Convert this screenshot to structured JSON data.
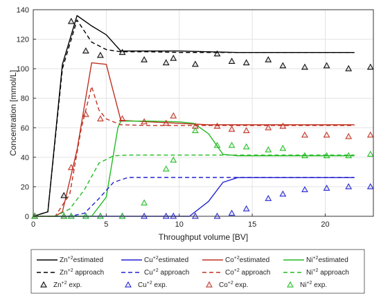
{
  "chart_data": {
    "type": "line",
    "xlabel": "Throughput volume [BV]",
    "ylabel": "Concentration [mmol/L]",
    "xlim": [
      0,
      23.3
    ],
    "ylim": [
      0,
      140
    ],
    "xticks": [
      0,
      5,
      10,
      15,
      20
    ],
    "yticks": [
      0,
      20,
      40,
      60,
      80,
      100,
      120,
      140
    ],
    "grid": true,
    "legend_placement": "bottom",
    "series": [
      {
        "ion": "Zn",
        "charge": "+2",
        "suffix": "estimated",
        "kind": "estimated",
        "color": "#000000",
        "x": [
          0,
          1,
          2,
          3,
          4,
          5,
          6,
          8,
          10,
          12,
          14,
          16,
          18,
          20,
          22
        ],
        "y": [
          0,
          3,
          103,
          136,
          129,
          123,
          112,
          112,
          112,
          111.5,
          111,
          111,
          111,
          111,
          111
        ]
      },
      {
        "ion": "Cu",
        "charge": "+2",
        "suffix": "estimated",
        "kind": "estimated",
        "color": "#2020d0",
        "x": [
          0,
          10.7,
          12.0,
          13.0,
          14,
          16,
          18,
          20,
          22
        ],
        "y": [
          0,
          0,
          10,
          23,
          26.2,
          26.2,
          26.2,
          26.2,
          26.2
        ]
      },
      {
        "ion": "Co",
        "charge": "+2",
        "suffix": "estimated",
        "kind": "estimated",
        "color": "#c03020",
        "x": [
          0,
          1.5,
          2.0,
          3.0,
          4.0,
          5.0,
          6.0,
          8,
          10,
          12,
          14,
          16,
          18,
          20,
          22
        ],
        "y": [
          0,
          0,
          3,
          45,
          104,
          103,
          65,
          64,
          63,
          62,
          62,
          62,
          62,
          62,
          62
        ]
      },
      {
        "ion": "Ni",
        "charge": "+2",
        "suffix": "estimated",
        "kind": "estimated",
        "color": "#22bb22",
        "x": [
          0,
          4.0,
          5.0,
          5.8,
          6.0,
          8,
          10,
          11,
          12,
          13,
          14,
          16,
          18,
          20,
          22
        ],
        "y": [
          0,
          0,
          13,
          60,
          64.5,
          64.5,
          64,
          63,
          56,
          42,
          41,
          41,
          41,
          41,
          41
        ]
      },
      {
        "ion": "Zn",
        "charge": "+2",
        "suffix": "approach",
        "kind": "approach",
        "color": "#000000",
        "x": [
          0,
          1,
          2,
          3,
          4,
          5,
          6,
          8,
          10,
          12,
          14,
          16,
          18,
          20,
          22
        ],
        "y": [
          0,
          3,
          100,
          133,
          118,
          113,
          111.5,
          111.5,
          111,
          111,
          111,
          111,
          111,
          111,
          111
        ]
      },
      {
        "ion": "Cu",
        "charge": "+2",
        "suffix": "approach",
        "kind": "approach",
        "color": "#2020d0",
        "x": [
          0,
          2.5,
          3.5,
          4.5,
          5.5,
          6.5,
          8,
          10,
          12,
          14,
          16,
          18,
          20,
          22
        ],
        "y": [
          0,
          0,
          2,
          12,
          23,
          26.3,
          26.3,
          26.3,
          26.3,
          26.3,
          26.3,
          26.3,
          26.3,
          26.3
        ]
      },
      {
        "ion": "Co",
        "charge": "+2",
        "suffix": "approach",
        "kind": "approach",
        "color": "#c03020",
        "x": [
          0,
          1.5,
          2.5,
          3.3,
          4.0,
          4.5,
          5.0,
          6.0,
          8,
          10,
          12,
          14,
          16,
          18,
          20,
          22
        ],
        "y": [
          0,
          0,
          15,
          60,
          88,
          72,
          66,
          62,
          61.5,
          61.5,
          61.5,
          61.5,
          61.5,
          61.5,
          61.5,
          61.5
        ]
      },
      {
        "ion": "Ni",
        "charge": "+2",
        "suffix": "approach",
        "kind": "approach",
        "color": "#22bb22",
        "x": [
          0,
          1.5,
          2.5,
          3.5,
          4.5,
          5.5,
          6.5,
          8,
          10,
          12,
          14,
          16,
          18,
          20,
          22
        ],
        "y": [
          0,
          0,
          5,
          18,
          36,
          41,
          41.5,
          41.5,
          41.5,
          41.5,
          41.5,
          41.5,
          41.5,
          41.5,
          41.5
        ]
      },
      {
        "ion": "Zn",
        "charge": "+2",
        "suffix": "exp.",
        "kind": "exp",
        "color": "#000000",
        "x": [
          0.1,
          2.1,
          2.6,
          3.6,
          4.6,
          6.1,
          7.6,
          9.1,
          9.6,
          11.1,
          12.6,
          13.6,
          14.6,
          16.1,
          17.1,
          18.6,
          20.1,
          21.6,
          23.1
        ],
        "y": [
          0,
          14,
          132,
          112,
          109,
          111,
          106,
          104,
          107,
          103,
          110,
          105,
          104,
          106,
          102,
          101,
          102,
          100,
          101
        ]
      },
      {
        "ion": "Cu",
        "charge": "+2",
        "suffix": "exp.",
        "kind": "exp",
        "color": "#2020d0",
        "x": [
          0.1,
          2.1,
          2.6,
          3.6,
          4.6,
          6.1,
          7.6,
          9.1,
          9.6,
          11.1,
          12.6,
          13.6,
          14.6,
          16.1,
          17.1,
          18.6,
          20.1,
          21.6,
          23.1
        ],
        "y": [
          0,
          0,
          0,
          0,
          0,
          0,
          0,
          0,
          0,
          0,
          0,
          2,
          5,
          12,
          15,
          18,
          19,
          20,
          20
        ]
      },
      {
        "ion": "Co",
        "charge": "+2",
        "suffix": "exp.",
        "kind": "exp",
        "color": "#c03020",
        "x": [
          0.1,
          2.1,
          2.6,
          3.6,
          4.6,
          6.1,
          7.6,
          9.1,
          9.6,
          11.1,
          12.6,
          13.6,
          14.6,
          16.1,
          17.1,
          18.6,
          20.1,
          21.6,
          23.1
        ],
        "y": [
          0,
          0,
          33,
          69,
          66,
          66,
          64,
          63,
          68,
          61,
          61,
          59,
          58,
          60,
          61,
          55,
          55,
          54,
          55
        ]
      },
      {
        "ion": "Ni",
        "charge": "+2",
        "suffix": "exp.",
        "kind": "exp",
        "color": "#22bb22",
        "x": [
          0.1,
          2.1,
          2.6,
          3.6,
          4.6,
          6.1,
          7.6,
          9.1,
          9.6,
          11.1,
          12.6,
          13.6,
          14.6,
          16.1,
          17.1,
          18.6,
          20.1,
          21.6,
          23.1
        ],
        "y": [
          0,
          0,
          0,
          0,
          0,
          0,
          9,
          32,
          38,
          58,
          48,
          48,
          47,
          45,
          46,
          41,
          41,
          41,
          42
        ]
      }
    ]
  }
}
